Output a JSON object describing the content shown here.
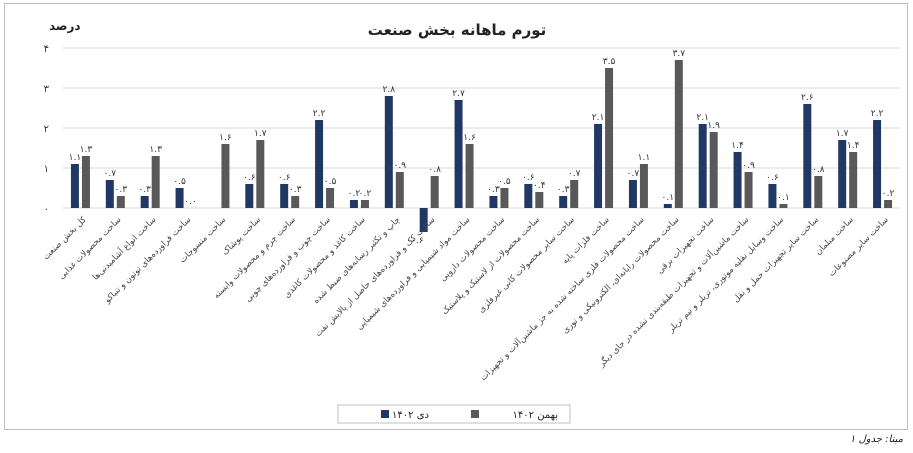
{
  "chart_data": {
    "type": "bar",
    "title": "تورم ماهانه بخش صنعت",
    "ylabel": "درصد",
    "ylim": [
      -1,
      4
    ],
    "yticks": [
      0,
      1,
      2,
      3,
      4
    ],
    "ytick_labels": [
      "۰",
      "۱",
      "۲",
      "۳",
      "۴"
    ],
    "grid": true,
    "legend_position": "bottom",
    "categories": [
      "کل بخش صنعت",
      "ساخت محصولات غذایی",
      "ساخت انواع آشامیدنی‌ها",
      "ساخت فراورده‌های توتون و تنباکو",
      "ساخت منسوجات",
      "ساخت پوشاک",
      "ساخت چرم و محصولات وابسته",
      "ساخت چوب و فراورده‌های چوبی",
      "ساخت کاغذ و محصولات کاغذی",
      "چاپ و تکثیر رسانه‌های ضبط شده",
      "ساخت کک و فراورده‌های حاصل از پالایش نفت",
      "ساخت مواد شیمیایی و فراورده‌های شیمیایی",
      "ساخت محصولات دارویی",
      "ساخت محصولات از لاستیک و پلاستیک",
      "ساخت سایر محصولات کانی غیرفلزی",
      "ساخت فلزات پایه",
      "ساخت محصولات فلزی ساخته شده به جز ماشین‌آلات و تجهیزات",
      "ساخت محصولات رایانه‌ای، الکترونیکی و نوری",
      "ساخت تجهیزات برقی",
      "ساخت ماشین‌آلات و تجهیزات طبقه‌بندی نشده در جای دیگر",
      "ساخت وسایل نقلیه موتوری، تریلر و نیم تریلر",
      "ساخت سایر تجهیزات حمل و نقل",
      "ساخت مبلمان",
      "ساخت سایر مصنوعات"
    ],
    "series": [
      {
        "name": "دی ۱۴۰۲",
        "color": "#203864",
        "values": [
          1.1,
          0.7,
          0.3,
          0.5,
          0.0,
          0.6,
          0.6,
          2.2,
          0.2,
          2.8,
          -0.6,
          2.7,
          0.3,
          0.6,
          0.3,
          2.1,
          0.7,
          0.1,
          2.1,
          1.4,
          0.6,
          2.6,
          1.7,
          2.2
        ],
        "labels": [
          "۱.۱",
          "۰.۷",
          "۰.۳",
          "۰.۵",
          "",
          "۰.۶",
          "۰.۶",
          "۲.۲",
          "۰.۲",
          "۲.۸",
          "-۰.۶",
          "۲.۷",
          "۰.۳",
          "۰.۶",
          "۰.۳",
          "۲.۱",
          "۰.۷",
          "۰.۱",
          "۲.۱",
          "۱.۴",
          "۰.۶",
          "۲.۶",
          "۱.۷",
          "۲.۲"
        ]
      },
      {
        "name": "بهمن ۱۴۰۲",
        "color": "#595959",
        "values": [
          1.3,
          0.3,
          1.3,
          0.0,
          1.6,
          1.7,
          0.3,
          0.5,
          0.2,
          0.9,
          0.8,
          1.6,
          0.5,
          0.4,
          0.7,
          3.5,
          1.1,
          3.7,
          1.9,
          0.9,
          0.1,
          0.8,
          1.4,
          0.2
        ],
        "labels": [
          "۱.۳",
          "۰.۳",
          "۱.۳",
          "۰.۰",
          "۱.۶",
          "۱.۷",
          "۰.۳",
          "۰.۵",
          "۰.۲",
          "۰.۹",
          "۰.۸",
          "۱.۶",
          "۰.۵",
          "۰.۴",
          "۰.۷",
          "۳.۵",
          "۱.۱",
          "۳.۷",
          "۱.۹",
          "۰.۹",
          "۰.۱",
          "۰.۸",
          "۱.۴",
          "۰.۲"
        ]
      }
    ]
  },
  "source_note": "مبنا: جدول ۱"
}
